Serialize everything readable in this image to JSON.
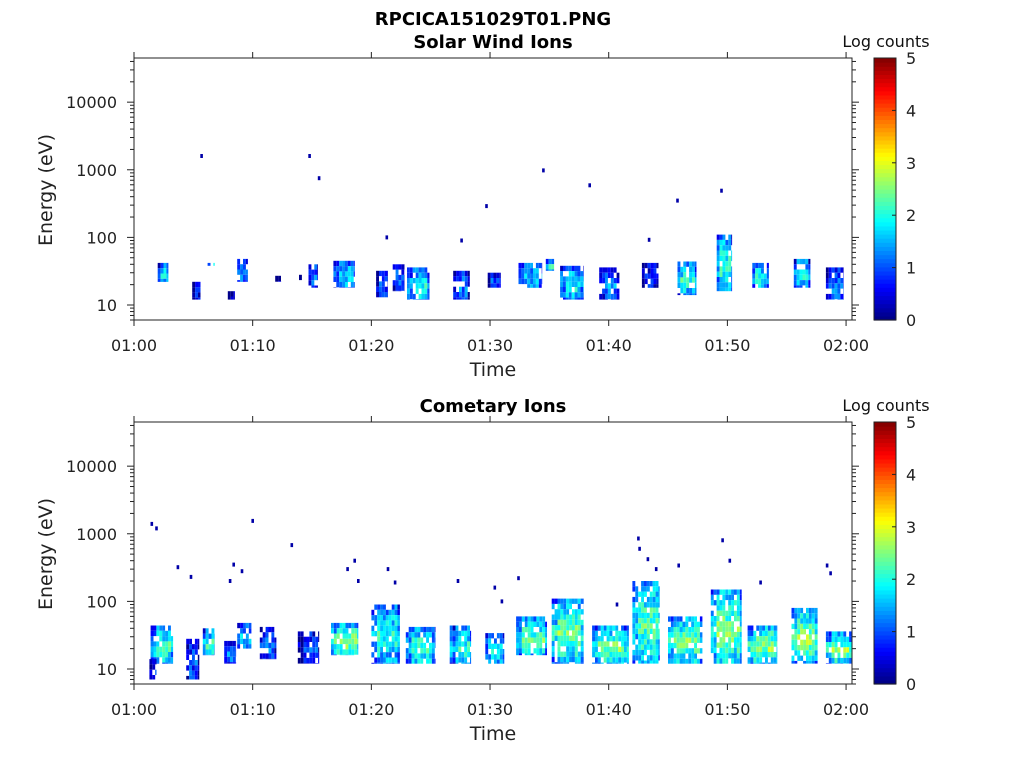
{
  "figure": {
    "title": "RPCICA151029T01.PNG"
  },
  "colorbar": {
    "label": "Log counts",
    "ticks": [
      "0",
      "1",
      "2",
      "3",
      "4",
      "5"
    ],
    "range": [
      0,
      5
    ],
    "colormap": "jet"
  },
  "chart_data": [
    {
      "type": "heatmap",
      "title": "Solar Wind Ions",
      "xlabel": "Time",
      "ylabel": "Energy (eV)",
      "x_ticks": [
        "01:00",
        "01:10",
        "01:20",
        "01:30",
        "01:40",
        "01:50",
        "02:00"
      ],
      "y_ticks": [
        "10",
        "100",
        "1000",
        "10000"
      ],
      "y_scale": "log",
      "ylim": [
        6,
        45000
      ],
      "xlim_minutes": [
        0,
        60.5
      ],
      "z_label": "Log counts",
      "zlim": [
        0,
        5
      ],
      "blocks": [
        {
          "t0": 2.0,
          "t1": 2.9,
          "e0": 22,
          "e1": 42,
          "c": 1.8
        },
        {
          "t0": 4.9,
          "t1": 5.6,
          "e0": 12,
          "e1": 22,
          "c": 0.5
        },
        {
          "t0": 6.2,
          "t1": 6.8,
          "e0": 38,
          "e1": 42,
          "c": 2.5
        },
        {
          "t0": 7.9,
          "t1": 8.5,
          "e0": 12,
          "e1": 16,
          "c": 0.3
        },
        {
          "t0": 8.7,
          "t1": 9.6,
          "e0": 22,
          "e1": 48,
          "c": 1.4
        },
        {
          "t0": 11.9,
          "t1": 12.4,
          "e0": 22,
          "e1": 27,
          "c": 0.4
        },
        {
          "t0": 13.9,
          "t1": 14.3,
          "e0": 22,
          "e1": 28,
          "c": 0.6
        },
        {
          "t0": 14.7,
          "t1": 15.5,
          "e0": 18,
          "e1": 40,
          "c": 1.3
        },
        {
          "t0": 16.8,
          "t1": 18.6,
          "e0": 18,
          "e1": 45,
          "c": 1.7
        },
        {
          "t0": 20.4,
          "t1": 21.4,
          "e0": 13,
          "e1": 32,
          "c": 0.9
        },
        {
          "t0": 21.8,
          "t1": 22.8,
          "e0": 16,
          "e1": 40,
          "c": 1.1
        },
        {
          "t0": 23.0,
          "t1": 24.9,
          "e0": 12,
          "e1": 36,
          "c": 2.0
        },
        {
          "t0": 26.9,
          "t1": 28.3,
          "e0": 12,
          "e1": 32,
          "c": 1.2
        },
        {
          "t0": 29.8,
          "t1": 30.9,
          "e0": 18,
          "e1": 30,
          "c": 1.0
        },
        {
          "t0": 32.4,
          "t1": 34.4,
          "e0": 18,
          "e1": 42,
          "c": 1.7
        },
        {
          "t0": 34.7,
          "t1": 35.4,
          "e0": 32,
          "e1": 48,
          "c": 2.1
        },
        {
          "t0": 35.9,
          "t1": 37.9,
          "e0": 12,
          "e1": 38,
          "c": 1.9
        },
        {
          "t0": 39.2,
          "t1": 40.9,
          "e0": 12,
          "e1": 36,
          "c": 1.3
        },
        {
          "t0": 42.8,
          "t1": 44.2,
          "e0": 18,
          "e1": 42,
          "c": 0.7
        },
        {
          "t0": 45.8,
          "t1": 47.4,
          "e0": 14,
          "e1": 44,
          "c": 2.0
        },
        {
          "t0": 49.1,
          "t1": 50.4,
          "e0": 16,
          "e1": 110,
          "c": 2.1
        },
        {
          "t0": 52.1,
          "t1": 53.5,
          "e0": 18,
          "e1": 42,
          "c": 2.1
        },
        {
          "t0": 55.6,
          "t1": 57.0,
          "e0": 18,
          "e1": 48,
          "c": 1.9
        },
        {
          "t0": 58.3,
          "t1": 59.8,
          "e0": 12,
          "e1": 36,
          "c": 1.2
        }
      ],
      "points": [
        {
          "t": 5.7,
          "e": 1600,
          "c": 0.2
        },
        {
          "t": 14.8,
          "e": 1600,
          "c": 0.2
        },
        {
          "t": 15.6,
          "e": 750,
          "c": 0.2
        },
        {
          "t": 21.3,
          "e": 100,
          "c": 0.2
        },
        {
          "t": 27.6,
          "e": 90,
          "c": 0.2
        },
        {
          "t": 29.7,
          "e": 290,
          "c": 0.2
        },
        {
          "t": 34.5,
          "e": 980,
          "c": 0.2
        },
        {
          "t": 38.4,
          "e": 590,
          "c": 0.2
        },
        {
          "t": 43.4,
          "e": 92,
          "c": 0.2
        },
        {
          "t": 45.8,
          "e": 350,
          "c": 0.2
        },
        {
          "t": 49.5,
          "e": 490,
          "c": 0.2
        }
      ]
    },
    {
      "type": "heatmap",
      "title": "Cometary Ions",
      "xlabel": "Time",
      "ylabel": "Energy (eV)",
      "x_ticks": [
        "01:00",
        "01:10",
        "01:20",
        "01:30",
        "01:40",
        "01:50",
        "02:00"
      ],
      "y_ticks": [
        "10",
        "100",
        "1000",
        "10000"
      ],
      "y_scale": "log",
      "ylim": [
        6,
        45000
      ],
      "xlim_minutes": [
        0,
        60.5
      ],
      "z_label": "Log counts",
      "zlim": [
        0,
        5
      ],
      "blocks": [
        {
          "t0": 1.4,
          "t1": 3.3,
          "e0": 12,
          "e1": 44,
          "c": 2.2
        },
        {
          "t0": 1.3,
          "t1": 1.9,
          "e0": 7,
          "e1": 14,
          "c": 0.6
        },
        {
          "t0": 4.4,
          "t1": 5.5,
          "e0": 7,
          "e1": 28,
          "c": 1.0
        },
        {
          "t0": 5.8,
          "t1": 6.8,
          "e0": 16,
          "e1": 40,
          "c": 2.1
        },
        {
          "t0": 7.6,
          "t1": 8.6,
          "e0": 12,
          "e1": 26,
          "c": 1.1
        },
        {
          "t0": 8.7,
          "t1": 9.9,
          "e0": 20,
          "e1": 48,
          "c": 1.6
        },
        {
          "t0": 10.6,
          "t1": 12.0,
          "e0": 14,
          "e1": 42,
          "c": 1.2
        },
        {
          "t0": 13.8,
          "t1": 15.6,
          "e0": 12,
          "e1": 36,
          "c": 0.9
        },
        {
          "t0": 16.6,
          "t1": 18.9,
          "e0": 16,
          "e1": 48,
          "c": 2.6
        },
        {
          "t0": 20.0,
          "t1": 22.4,
          "e0": 12,
          "e1": 90,
          "c": 2.0
        },
        {
          "t0": 22.9,
          "t1": 25.4,
          "e0": 12,
          "e1": 42,
          "c": 2.2
        },
        {
          "t0": 26.6,
          "t1": 28.4,
          "e0": 12,
          "e1": 44,
          "c": 2.0
        },
        {
          "t0": 29.6,
          "t1": 31.2,
          "e0": 12,
          "e1": 34,
          "c": 1.8
        },
        {
          "t0": 32.2,
          "t1": 34.8,
          "e0": 16,
          "e1": 60,
          "c": 2.3
        },
        {
          "t0": 35.2,
          "t1": 37.9,
          "e0": 12,
          "e1": 110,
          "c": 2.4
        },
        {
          "t0": 38.6,
          "t1": 41.7,
          "e0": 12,
          "e1": 44,
          "c": 2.5
        },
        {
          "t0": 42.0,
          "t1": 44.3,
          "e0": 12,
          "e1": 200,
          "c": 2.3
        },
        {
          "t0": 45.0,
          "t1": 47.9,
          "e0": 12,
          "e1": 60,
          "c": 2.4
        },
        {
          "t0": 48.6,
          "t1": 51.2,
          "e0": 12,
          "e1": 150,
          "c": 2.5
        },
        {
          "t0": 51.7,
          "t1": 54.2,
          "e0": 12,
          "e1": 44,
          "c": 2.6
        },
        {
          "t0": 55.4,
          "t1": 57.6,
          "e0": 12,
          "e1": 80,
          "c": 2.6
        },
        {
          "t0": 58.3,
          "t1": 60.5,
          "e0": 12,
          "e1": 36,
          "c": 2.5
        }
      ],
      "points": [
        {
          "t": 1.5,
          "e": 1400,
          "c": 0.2
        },
        {
          "t": 1.9,
          "e": 1200,
          "c": 0.2
        },
        {
          "t": 10.0,
          "e": 1550,
          "c": 0.2
        },
        {
          "t": 13.3,
          "e": 680,
          "c": 0.2
        },
        {
          "t": 3.7,
          "e": 320,
          "c": 0.2
        },
        {
          "t": 4.8,
          "e": 230,
          "c": 0.2
        },
        {
          "t": 8.4,
          "e": 350,
          "c": 0.2
        },
        {
          "t": 8.1,
          "e": 200,
          "c": 0.2
        },
        {
          "t": 9.1,
          "e": 280,
          "c": 0.2
        },
        {
          "t": 18.0,
          "e": 300,
          "c": 0.2
        },
        {
          "t": 18.6,
          "e": 400,
          "c": 0.2
        },
        {
          "t": 18.9,
          "e": 200,
          "c": 0.2
        },
        {
          "t": 21.4,
          "e": 300,
          "c": 0.2
        },
        {
          "t": 22.0,
          "e": 190,
          "c": 0.2
        },
        {
          "t": 27.3,
          "e": 200,
          "c": 0.2
        },
        {
          "t": 30.4,
          "e": 160,
          "c": 0.2
        },
        {
          "t": 31.0,
          "e": 100,
          "c": 0.2
        },
        {
          "t": 32.4,
          "e": 220,
          "c": 0.2
        },
        {
          "t": 40.7,
          "e": 90,
          "c": 0.2
        },
        {
          "t": 42.5,
          "e": 850,
          "c": 0.2
        },
        {
          "t": 42.6,
          "e": 600,
          "c": 0.2
        },
        {
          "t": 43.3,
          "e": 420,
          "c": 0.2
        },
        {
          "t": 44.0,
          "e": 300,
          "c": 0.2
        },
        {
          "t": 45.9,
          "e": 340,
          "c": 0.2
        },
        {
          "t": 49.6,
          "e": 800,
          "c": 0.2
        },
        {
          "t": 50.2,
          "e": 400,
          "c": 0.2
        },
        {
          "t": 52.8,
          "e": 190,
          "c": 0.2
        },
        {
          "t": 58.4,
          "e": 340,
          "c": 0.2
        },
        {
          "t": 58.7,
          "e": 260,
          "c": 0.2
        }
      ]
    }
  ]
}
